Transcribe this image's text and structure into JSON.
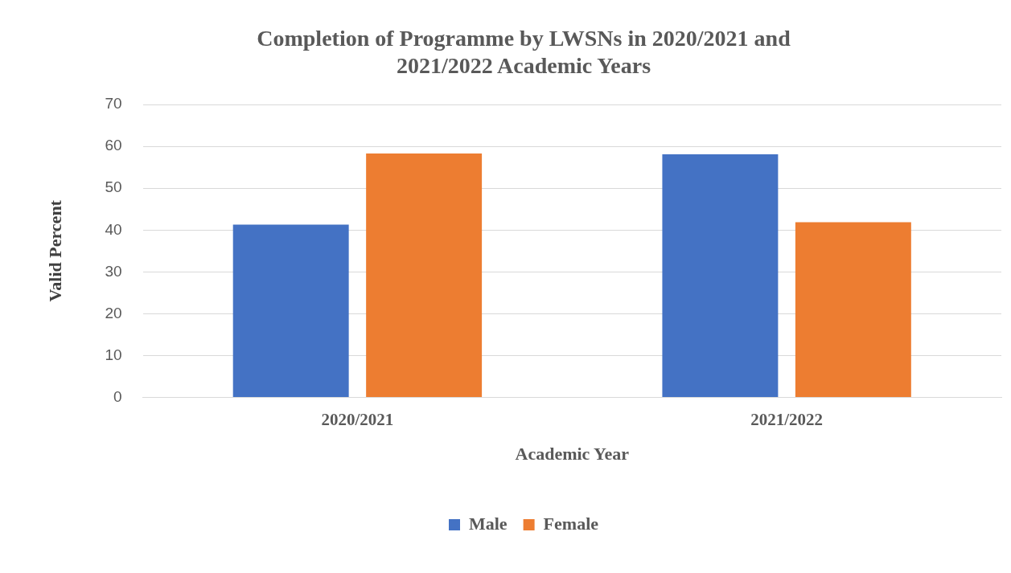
{
  "chart_data": {
    "type": "bar",
    "title": "Completion of Programme by LWSNs in 2020/2021 and 2021/2022 Academic Years",
    "xlabel": "Academic Year",
    "ylabel": "Valid Percent",
    "categories": [
      "2020/2021",
      "2021/2022"
    ],
    "series": [
      {
        "name": "Male",
        "color": "#4472c4",
        "values": [
          41.3,
          58.1
        ]
      },
      {
        "name": "Female",
        "color": "#ed7d31",
        "values": [
          58.3,
          41.9
        ]
      }
    ],
    "ylim": [
      0,
      70
    ],
    "yticks": [
      0,
      10,
      20,
      30,
      40,
      50,
      60,
      70
    ],
    "grid": "y",
    "legend": "bottom"
  }
}
